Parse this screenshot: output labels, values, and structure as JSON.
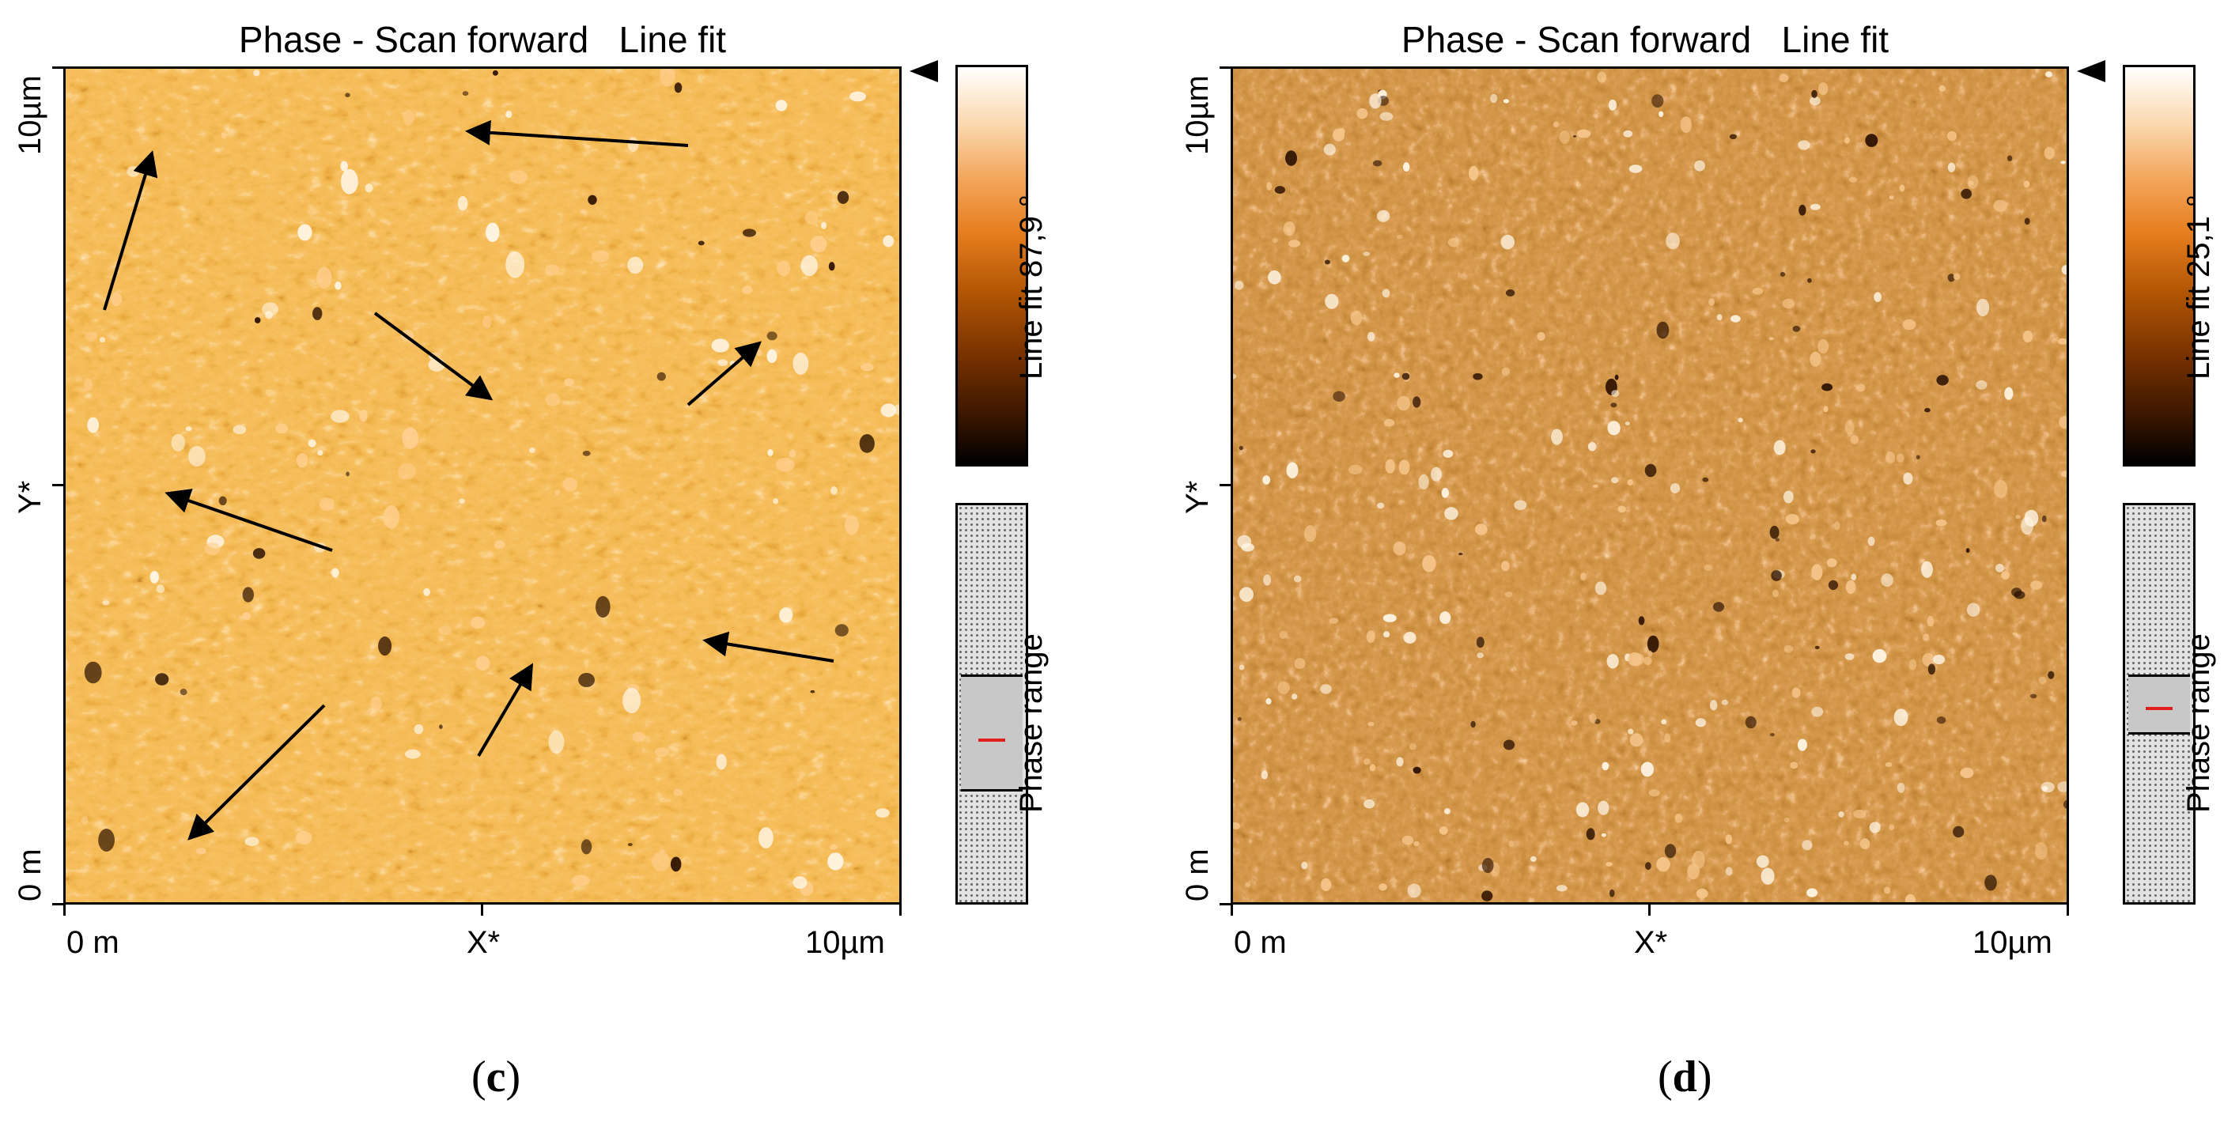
{
  "panels": [
    {
      "title": "Phase - Scan forward   Line fit",
      "y_top_label": "10µm",
      "y_mid_label": "Y*",
      "y_bottom_label": "0 m",
      "x_left_label": "0 m",
      "x_mid_label": "X*",
      "x_right_label": "10µm",
      "colorbar_label": "Line fit 87,9 °",
      "range_label": "Phase range",
      "caption_open": "(",
      "caption_letter": "c",
      "caption_close": ")",
      "colormap": [
        "#000000",
        "#3a1600",
        "#7a3300",
        "#b85a06",
        "#e57d1e",
        "#f3a65c",
        "#fbd9b0",
        "#ffffff"
      ],
      "arrow_color": "#000000",
      "range_selection_color": "#c8c8c8",
      "range_marker_color": "#e0201a",
      "annotation_arrow_count": 10
    },
    {
      "title": "Phase - Scan forward   Line fit",
      "y_top_label": "10µm",
      "y_mid_label": "Y*",
      "y_bottom_label": "0 m",
      "x_left_label": "0 m",
      "x_mid_label": "X*",
      "x_right_label": "10µm",
      "colorbar_label": "Line fit 25,1 °",
      "range_label": "Phase range",
      "caption_open": "(",
      "caption_letter": "d",
      "caption_close": ")",
      "colormap": [
        "#000000",
        "#3a1600",
        "#7a3300",
        "#b85a06",
        "#e57d1e",
        "#f3a65c",
        "#fbd9b0",
        "#ffffff"
      ],
      "range_selection_color": "#c8c8c8",
      "range_marker_color": "#e0201a"
    }
  ]
}
